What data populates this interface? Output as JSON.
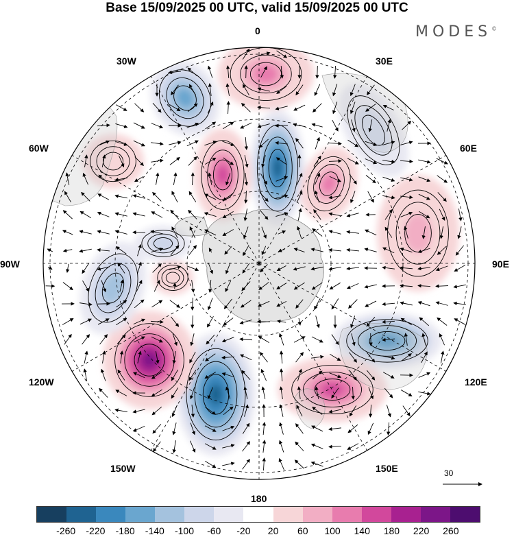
{
  "title": "Base 15/09/2025 00 UTC, valid 15/09/2025 00 UTC",
  "brand": "MODES",
  "brand_mark": "©",
  "longitude_labels": {
    "north": "0",
    "n30e": "30E",
    "n60e": "60E",
    "east": "90E",
    "s120e": "120E",
    "s150e": "150E",
    "south": "180",
    "s150w": "150W",
    "s120w": "120W",
    "west": "90W",
    "n60w": "60W",
    "n30w": "30W"
  },
  "vector_reference": {
    "label": "30"
  },
  "colorbar": {
    "colors": [
      "#173f5f",
      "#1f6391",
      "#3a88bd",
      "#6aa6cf",
      "#a4c2de",
      "#cdd6ea",
      "#e8e8f2",
      "#ffffff",
      "#f7d6d8",
      "#f2aec4",
      "#e87cae",
      "#d2489c",
      "#a82190",
      "#7c1688",
      "#4d0d6f"
    ],
    "ticks": [
      "-260",
      "-220",
      "-180",
      "-140",
      "-100",
      "-60",
      "-20",
      "20",
      "60",
      "100",
      "140",
      "180",
      "220",
      "260"
    ]
  },
  "anomaly_centers": [
    {
      "name": "pos-0",
      "value": 140
    },
    {
      "name": "neg-30w",
      "value": -140
    },
    {
      "name": "neg-10e",
      "value": -220
    },
    {
      "name": "pos-10w",
      "value": 180
    },
    {
      "name": "pos-40e",
      "value": 140
    },
    {
      "name": "neg-35e",
      "value": -60
    },
    {
      "name": "pos-80e",
      "value": 100
    },
    {
      "name": "neg-110e",
      "value": -180
    },
    {
      "name": "pos-140e",
      "value": 180
    },
    {
      "name": "neg-160w",
      "value": -220
    },
    {
      "name": "pos-135w",
      "value": 260
    },
    {
      "name": "neg-110w",
      "value": -100
    },
    {
      "name": "neg-90w",
      "value": -60
    },
    {
      "name": "pos-60w",
      "value": 60
    },
    {
      "name": "pos-100w",
      "value": 60
    }
  ]
}
